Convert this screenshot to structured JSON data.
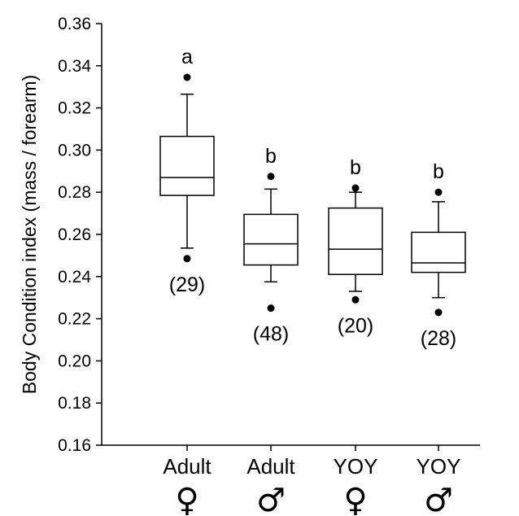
{
  "chart_data": {
    "type": "box",
    "ylabel": "Body Condition index  (mass / forearm)",
    "ylim": [
      0.16,
      0.36
    ],
    "yticks": [
      "0.16",
      "0.18",
      "0.20",
      "0.22",
      "0.24",
      "0.26",
      "0.28",
      "0.30",
      "0.32",
      "0.34",
      "0.36"
    ],
    "grid": false,
    "categories": [
      {
        "label": "Adult",
        "symbol": "♀"
      },
      {
        "label": "Adult",
        "symbol": "♂"
      },
      {
        "label": "YOY",
        "symbol": "♀"
      },
      {
        "label": "YOY",
        "symbol": "♂"
      }
    ],
    "boxes": [
      {
        "whisker_low": 0.2535,
        "q1": 0.2785,
        "median": 0.287,
        "q3": 0.3065,
        "whisker_high": 0.3265,
        "outliers": [
          0.3345,
          0.2485
        ],
        "group_letter": "a",
        "n_label": "(29)"
      },
      {
        "whisker_low": 0.2375,
        "q1": 0.2455,
        "median": 0.2555,
        "q3": 0.2695,
        "whisker_high": 0.2815,
        "outliers": [
          0.2875,
          0.225
        ],
        "group_letter": "b",
        "n_label": "(48)"
      },
      {
        "whisker_low": 0.233,
        "q1": 0.241,
        "median": 0.253,
        "q3": 0.2725,
        "whisker_high": 0.28,
        "outliers": [
          0.282,
          0.229
        ],
        "group_letter": "b",
        "n_label": "(20)"
      },
      {
        "whisker_low": 0.23,
        "q1": 0.242,
        "median": 0.2465,
        "q3": 0.261,
        "whisker_high": 0.2755,
        "outliers": [
          0.28,
          0.223
        ],
        "group_letter": "b",
        "n_label": "(28)"
      }
    ]
  }
}
